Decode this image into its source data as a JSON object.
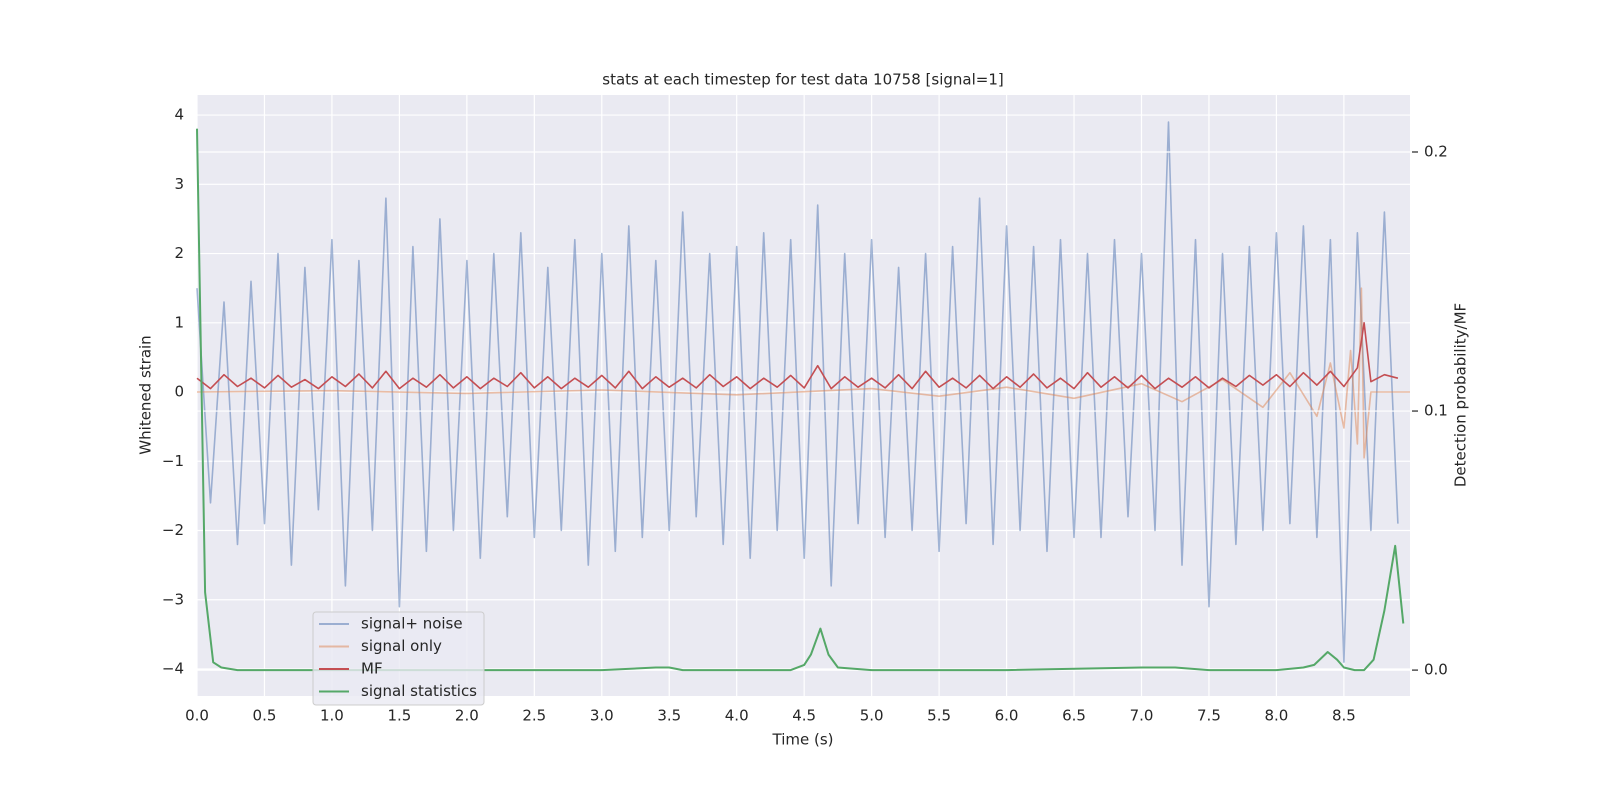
{
  "chart_data": {
    "type": "line",
    "title": "stats at each timestep for test data 10758 [signal=1]",
    "xlabel": "Time (s)",
    "ylabel": "Whitened strain",
    "y2label": "Detection probability/MF",
    "xlim": [
      0,
      8.99
    ],
    "ylim": [
      -4.39,
      4.29
    ],
    "y2lim": [
      -0.01,
      0.222
    ],
    "xticks": [
      {
        "value": 0,
        "label": "0.0"
      },
      {
        "value": 0.5,
        "label": "0.5"
      },
      {
        "value": 1,
        "label": "1.0"
      },
      {
        "value": 1.5,
        "label": "1.5"
      },
      {
        "value": 2,
        "label": "2.0"
      },
      {
        "value": 2.5,
        "label": "2.5"
      },
      {
        "value": 3,
        "label": "3.0"
      },
      {
        "value": 3.5,
        "label": "3.5"
      },
      {
        "value": 4,
        "label": "4.0"
      },
      {
        "value": 4.5,
        "label": "4.5"
      },
      {
        "value": 5,
        "label": "5.0"
      },
      {
        "value": 5.5,
        "label": "5.5"
      },
      {
        "value": 6,
        "label": "6.0"
      },
      {
        "value": 6.5,
        "label": "6.5"
      },
      {
        "value": 7,
        "label": "7.0"
      },
      {
        "value": 7.5,
        "label": "7.5"
      },
      {
        "value": 8,
        "label": "8.0"
      },
      {
        "value": 8.5,
        "label": "8.5"
      }
    ],
    "yticks": [
      {
        "value": -4,
        "label": "−4"
      },
      {
        "value": -3,
        "label": "−3"
      },
      {
        "value": -2,
        "label": "−2"
      },
      {
        "value": -1,
        "label": "−1"
      },
      0,
      1,
      2,
      3,
      4
    ],
    "y2ticks": [
      {
        "value": 0,
        "label": "0.0"
      },
      {
        "value": 0.1,
        "label": "0.1"
      },
      {
        "value": 0.2,
        "label": "0.2"
      }
    ],
    "grid": true,
    "legend": "lower left",
    "series": [
      {
        "name": "signal+ noise",
        "color": "#4c72b0",
        "opacity": 0.5,
        "x": [
          0.0,
          0.1,
          0.2,
          0.3,
          0.4,
          0.5,
          0.6,
          0.7,
          0.8,
          0.9,
          1.0,
          1.1,
          1.2,
          1.3,
          1.4,
          1.5,
          1.6,
          1.7,
          1.8,
          1.9,
          2.0,
          2.1,
          2.2,
          2.3,
          2.4,
          2.5,
          2.6,
          2.7,
          2.8,
          2.9,
          3.0,
          3.1,
          3.2,
          3.3,
          3.4,
          3.5,
          3.6,
          3.7,
          3.8,
          3.9,
          4.0,
          4.1,
          4.2,
          4.3,
          4.4,
          4.5,
          4.6,
          4.7,
          4.8,
          4.9,
          5.0,
          5.1,
          5.2,
          5.3,
          5.4,
          5.5,
          5.6,
          5.7,
          5.8,
          5.9,
          6.0,
          6.1,
          6.2,
          6.3,
          6.4,
          6.5,
          6.6,
          6.7,
          6.8,
          6.9,
          7.0,
          7.1,
          7.2,
          7.3,
          7.4,
          7.5,
          7.6,
          7.7,
          7.8,
          7.9,
          8.0,
          8.1,
          8.2,
          8.3,
          8.4,
          8.5,
          8.6,
          8.7,
          8.8,
          8.9
        ],
        "values": [
          1.5,
          -1.6,
          1.3,
          -2.2,
          1.6,
          -1.9,
          2.0,
          -2.5,
          1.8,
          -1.7,
          2.2,
          -2.8,
          1.9,
          -2.0,
          2.8,
          -3.1,
          2.1,
          -2.3,
          2.5,
          -2.0,
          1.9,
          -2.4,
          2.0,
          -1.8,
          2.3,
          -2.1,
          1.8,
          -2.0,
          2.2,
          -2.5,
          2.0,
          -2.3,
          2.4,
          -2.1,
          1.9,
          -2.0,
          2.6,
          -1.8,
          2.0,
          -2.2,
          2.1,
          -2.4,
          2.3,
          -2.0,
          2.2,
          -2.4,
          2.7,
          -2.8,
          2.0,
          -1.9,
          2.2,
          -2.1,
          1.8,
          -2.0,
          2.0,
          -2.3,
          2.1,
          -1.9,
          2.8,
          -2.2,
          2.4,
          -2.0,
          2.1,
          -2.3,
          2.2,
          -2.1,
          2.0,
          -2.1,
          2.2,
          -1.8,
          2.0,
          -2.0,
          3.9,
          -2.5,
          2.2,
          -3.1,
          2.0,
          -2.2,
          2.1,
          -2.0,
          2.3,
          -1.9,
          2.4,
          -2.1,
          2.2,
          -3.9,
          2.3,
          -2.0,
          2.6,
          -1.9
        ]
      },
      {
        "name": "signal only",
        "color": "#dd8452",
        "opacity": 0.5,
        "x": [
          0,
          1,
          2,
          3,
          4,
          5,
          5.5,
          6,
          6.5,
          7,
          7.3,
          7.6,
          7.9,
          8.1,
          8.3,
          8.4,
          8.5,
          8.55,
          8.6,
          8.63,
          8.65,
          8.7,
          8.99
        ],
        "values": [
          0,
          0.02,
          -0.02,
          0.03,
          -0.04,
          0.05,
          -0.06,
          0.07,
          -0.09,
          0.12,
          -0.14,
          0.18,
          -0.22,
          0.28,
          -0.35,
          0.42,
          -0.52,
          0.6,
          -0.75,
          1.5,
          -0.95,
          0,
          0
        ]
      },
      {
        "name": "MF",
        "color": "#c44e52",
        "opacity": 1,
        "x": [
          0.0,
          0.1,
          0.2,
          0.3,
          0.4,
          0.5,
          0.6,
          0.7,
          0.8,
          0.9,
          1.0,
          1.1,
          1.2,
          1.3,
          1.4,
          1.5,
          1.6,
          1.7,
          1.8,
          1.9,
          2.0,
          2.1,
          2.2,
          2.3,
          2.4,
          2.5,
          2.6,
          2.7,
          2.8,
          2.9,
          3.0,
          3.1,
          3.2,
          3.3,
          3.4,
          3.5,
          3.6,
          3.7,
          3.8,
          3.9,
          4.0,
          4.1,
          4.2,
          4.3,
          4.4,
          4.5,
          4.6,
          4.7,
          4.8,
          4.9,
          5.0,
          5.1,
          5.2,
          5.3,
          5.4,
          5.5,
          5.6,
          5.7,
          5.8,
          5.9,
          6.0,
          6.1,
          6.2,
          6.3,
          6.4,
          6.5,
          6.6,
          6.7,
          6.8,
          6.9,
          7.0,
          7.1,
          7.2,
          7.3,
          7.4,
          7.5,
          7.6,
          7.7,
          7.8,
          7.9,
          8.0,
          8.1,
          8.2,
          8.3,
          8.4,
          8.5,
          8.6,
          8.65,
          8.7,
          8.8,
          8.9
        ],
        "values": [
          0.2,
          0.05,
          0.25,
          0.08,
          0.2,
          0.06,
          0.24,
          0.07,
          0.18,
          0.05,
          0.22,
          0.08,
          0.26,
          0.06,
          0.3,
          0.05,
          0.2,
          0.07,
          0.25,
          0.06,
          0.22,
          0.05,
          0.2,
          0.08,
          0.28,
          0.06,
          0.22,
          0.05,
          0.2,
          0.07,
          0.24,
          0.06,
          0.3,
          0.05,
          0.22,
          0.07,
          0.2,
          0.06,
          0.25,
          0.08,
          0.22,
          0.05,
          0.2,
          0.07,
          0.24,
          0.06,
          0.38,
          0.05,
          0.22,
          0.07,
          0.2,
          0.06,
          0.25,
          0.05,
          0.3,
          0.07,
          0.2,
          0.06,
          0.24,
          0.05,
          0.22,
          0.07,
          0.26,
          0.06,
          0.2,
          0.05,
          0.28,
          0.07,
          0.22,
          0.06,
          0.24,
          0.05,
          0.2,
          0.07,
          0.22,
          0.06,
          0.2,
          0.08,
          0.24,
          0.1,
          0.25,
          0.08,
          0.28,
          0.1,
          0.3,
          0.08,
          0.35,
          1.0,
          0.15,
          0.25,
          0.2
        ]
      },
      {
        "name": "signal statistics",
        "color": "#55a868",
        "opacity": 1,
        "axis": "y2",
        "x": [
          0,
          0.06,
          0.12,
          0.18,
          0.3,
          1,
          2,
          3,
          3.4,
          3.5,
          3.6,
          4,
          4.4,
          4.5,
          4.55,
          4.62,
          4.68,
          4.75,
          5,
          6,
          7,
          7.25,
          7.5,
          8,
          8.2,
          8.28,
          8.38,
          8.45,
          8.5,
          8.58,
          8.65,
          8.72,
          8.8,
          8.88,
          8.94
        ],
        "values": [
          0.209,
          0.03,
          0.003,
          0.001,
          0,
          0,
          0,
          0,
          0.001,
          0.001,
          0,
          0,
          0,
          0.002,
          0.006,
          0.016,
          0.006,
          0.001,
          0,
          0,
          0.001,
          0.001,
          0,
          0,
          0.001,
          0.002,
          0.007,
          0.004,
          0.001,
          0,
          0,
          0.004,
          0.023,
          0.048,
          0.018
        ]
      }
    ]
  }
}
